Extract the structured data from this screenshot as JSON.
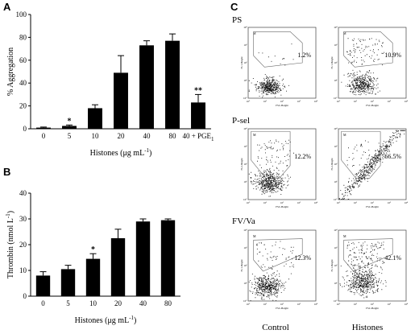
{
  "figure": {
    "panel_letters": [
      "A",
      "B",
      "C"
    ],
    "panel_c": {
      "row_labels": [
        "PS",
        "P-sel",
        "FV/Va"
      ],
      "column_labels": [
        "Control",
        "Histones"
      ],
      "percentages": [
        [
          "1.2%",
          "10.9%"
        ],
        [
          "12.2%",
          "66.5%"
        ],
        [
          "12.3%",
          "42.1%"
        ]
      ],
      "x_axis_label": "FSC-Height",
      "y_axis_labels": [
        "FL1-Height",
        "FL2-Height",
        "FL1-Height"
      ],
      "gate_marker": "M",
      "log_ticks": [
        "10°",
        "10¹",
        "10²",
        "10³",
        "10⁴"
      ]
    }
  },
  "chart_data": [
    {
      "type": "bar",
      "panel": "A",
      "categories": [
        "0",
        "5",
        "10",
        "20",
        "40",
        "80",
        "40 + PGE"
      ],
      "category_subscripts": [
        "",
        "",
        "",
        "",
        "",
        "",
        "1"
      ],
      "values": [
        1,
        2.5,
        18,
        49,
        73,
        77,
        23
      ],
      "errors": [
        0.5,
        0.8,
        3,
        15,
        4,
        6,
        7
      ],
      "significance": [
        "",
        "*",
        "",
        "",
        "",
        "",
        "**"
      ],
      "xlabel": "Histones (μg mL",
      "xlabel_superscript": "-1",
      "xlabel_suffix": ")",
      "ylabel": "% Aggregation",
      "ylim": [
        0,
        100
      ],
      "yticks": [
        0,
        20,
        40,
        60,
        80,
        100
      ],
      "color": "#000000"
    },
    {
      "type": "bar",
      "panel": "B",
      "categories": [
        "0",
        "5",
        "10",
        "20",
        "40",
        "80"
      ],
      "values": [
        8,
        10.5,
        14.5,
        22.5,
        29,
        29.5
      ],
      "errors": [
        1.5,
        1.5,
        2,
        3.5,
        1,
        0.5
      ],
      "significance": [
        "",
        "",
        "*",
        "",
        "",
        ""
      ],
      "xlabel": "Histones (μg mL",
      "xlabel_superscript": "-1",
      "xlabel_suffix": ")",
      "ylabel": "Thrombin (nmol L",
      "ylabel_superscript": "-1",
      "ylabel_suffix": ")",
      "ylim": [
        0,
        40
      ],
      "yticks": [
        0,
        10,
        20,
        30,
        40
      ],
      "color": "#000000"
    }
  ]
}
